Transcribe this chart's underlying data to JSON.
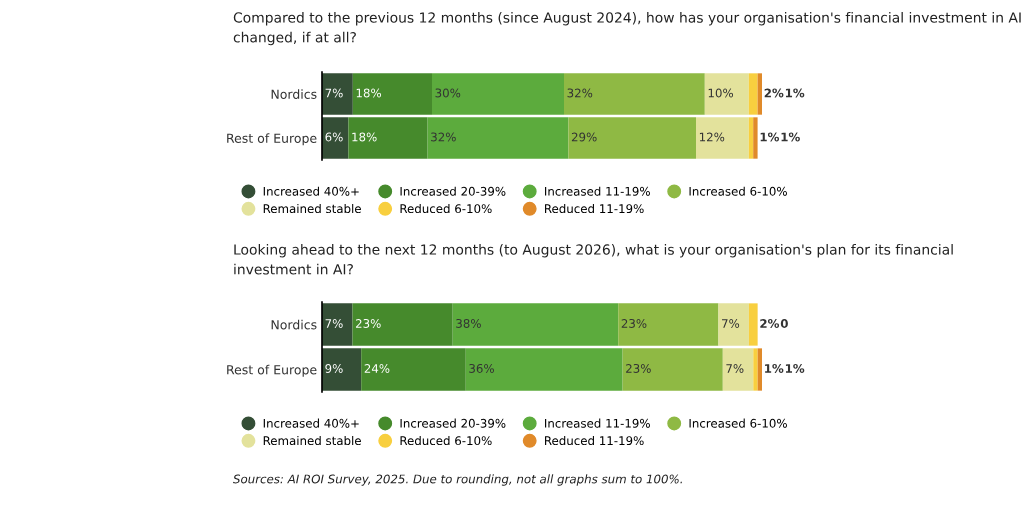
{
  "chart_data": [
    {
      "type": "bar",
      "title": "Compared to the previous 12 months (since August 2024), how has your organisation's financial investment in AI changed, if at all?",
      "orientation": "horizontal",
      "stacked": true,
      "categories": [
        "Nordics",
        "Rest of Europe"
      ],
      "tick_labels": "y",
      "legend": "bottom",
      "grid": false,
      "series": [
        {
          "name": "Increased 40%+",
          "color": "#344e36",
          "values": [
            7,
            6
          ],
          "value_labels": [
            "7%",
            "6%"
          ]
        },
        {
          "name": "Increased 20-39%",
          "color": "#468a2c",
          "values": [
            18,
            18
          ],
          "value_labels": [
            "18%",
            "18%"
          ]
        },
        {
          "name": "Increased 11-19%",
          "color": "#5cab3d",
          "values": [
            30,
            32
          ],
          "value_labels": [
            "30%",
            "32%"
          ]
        },
        {
          "name": "Increased 6-10%",
          "color": "#8fb944",
          "values": [
            32,
            29
          ],
          "value_labels": [
            "32%",
            "29%"
          ]
        },
        {
          "name": "Remained stable",
          "color": "#e3e29c",
          "values": [
            10,
            12
          ],
          "value_labels": [
            "10%",
            "12%"
          ]
        },
        {
          "name": "Reduced 6-10%",
          "color": "#f8cf3f",
          "values": [
            2,
            1
          ],
          "value_labels": [
            "2%",
            "1%"
          ]
        },
        {
          "name": "Reduced 11-19%",
          "color": "#e08a2a",
          "values": [
            1,
            1
          ],
          "value_labels": [
            "1%",
            "1%"
          ]
        }
      ]
    },
    {
      "type": "bar",
      "title": "Looking ahead to the next 12 months (to August 2026), what is your organisation's plan for its financial investment in AI?",
      "orientation": "horizontal",
      "stacked": true,
      "categories": [
        "Nordics",
        "Rest of Europe"
      ],
      "tick_labels": "y",
      "legend": "bottom",
      "grid": false,
      "annotations": [
        "Sources: AI ROI Survey, 2025. Due to rounding, not all graphs sum to 100%."
      ],
      "series": [
        {
          "name": "Increased 40%+",
          "color": "#344e36",
          "values": [
            7,
            9
          ],
          "value_labels": [
            "7%",
            "9%"
          ]
        },
        {
          "name": "Increased 20-39%",
          "color": "#468a2c",
          "values": [
            23,
            24
          ],
          "value_labels": [
            "23%",
            "24%"
          ]
        },
        {
          "name": "Increased 11-19%",
          "color": "#5cab3d",
          "values": [
            38,
            36
          ],
          "value_labels": [
            "38%",
            "36%"
          ]
        },
        {
          "name": "Increased 6-10%",
          "color": "#8fb944",
          "values": [
            23,
            23
          ],
          "value_labels": [
            "23%",
            "23%"
          ]
        },
        {
          "name": "Remained stable",
          "color": "#e3e29c",
          "values": [
            7,
            7
          ],
          "value_labels": [
            "7%",
            "7%"
          ]
        },
        {
          "name": "Reduced 6-10%",
          "color": "#f8cf3f",
          "values": [
            2,
            1
          ],
          "value_labels": [
            "2%",
            "1%"
          ]
        },
        {
          "name": "Reduced 11-19%",
          "color": "#e08a2a",
          "values": [
            0,
            1
          ],
          "value_labels": [
            "0",
            "1%"
          ]
        }
      ]
    }
  ]
}
